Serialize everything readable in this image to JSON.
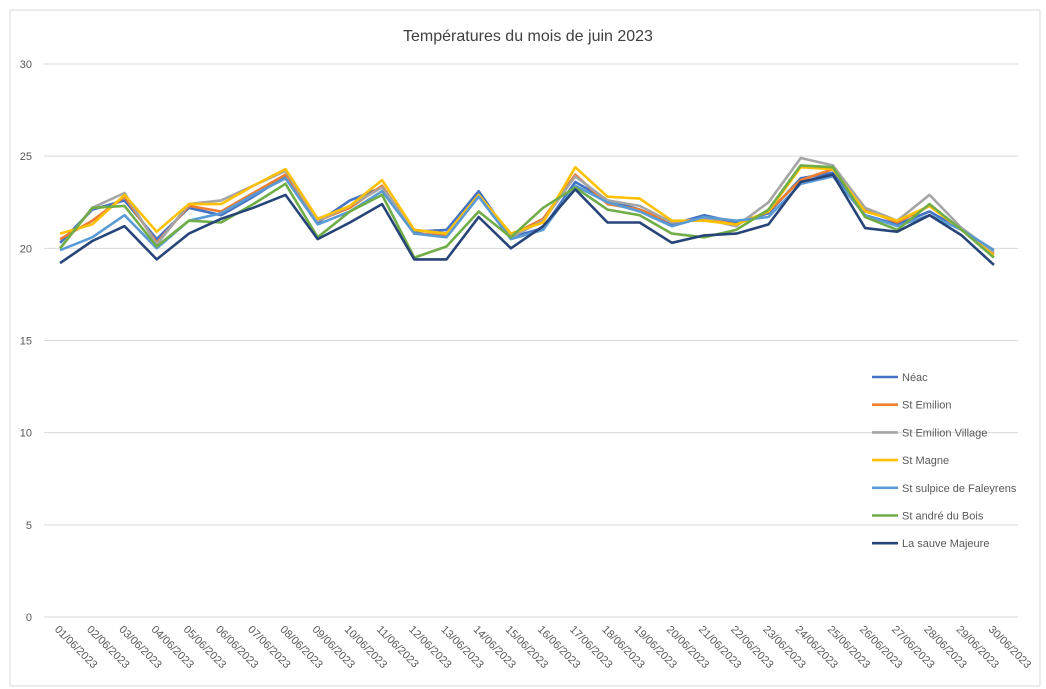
{
  "chart_data": {
    "type": "line",
    "title": "Températures du mois de juin 2023",
    "categories": [
      "01/06/2023",
      "02/06/2023",
      "03/06/2023",
      "04/06/2023",
      "05/06/2023",
      "06/06/2023",
      "07/06/2023",
      "08/06/2023",
      "09/06/2023",
      "10/06/2023",
      "11/06/2023",
      "12/06/2023",
      "13/06/2023",
      "14/06/2023",
      "15/06/2023",
      "16/06/2023",
      "17/06/2023",
      "18/06/2023",
      "19/06/2023",
      "20/06/2023",
      "21/06/2023",
      "22/06/2023",
      "23/06/2023",
      "24/06/2023",
      "25/06/2023",
      "26/06/2023",
      "27/06/2023",
      "28/06/2023",
      "29/06/2023",
      "30/06/2023"
    ],
    "series": [
      {
        "name": "Néac",
        "color": "#4472c4",
        "values": [
          20.3,
          22.1,
          22.6,
          20.5,
          22.2,
          21.8,
          22.8,
          23.9,
          21.4,
          22.6,
          23.3,
          20.9,
          21.0,
          23.1,
          20.6,
          21.1,
          23.6,
          22.6,
          22.1,
          21.3,
          21.8,
          21.4,
          21.9,
          23.8,
          24.1,
          21.8,
          21.3,
          22.0,
          21.0,
          19.9
        ]
      },
      {
        "name": "St Emilion",
        "color": "#ed7d31",
        "values": [
          20.5,
          21.5,
          22.8,
          20.3,
          22.3,
          22.0,
          23.0,
          24.0,
          21.5,
          22.2,
          23.4,
          20.8,
          20.7,
          22.9,
          20.7,
          21.6,
          24.0,
          22.4,
          22.1,
          21.4,
          21.6,
          21.3,
          22.0,
          23.7,
          24.3,
          22.1,
          21.4,
          22.3,
          21.0,
          19.7
        ]
      },
      {
        "name": "St Emilion Village",
        "color": "#a5a5a5",
        "values": [
          20.0,
          22.2,
          23.0,
          20.2,
          22.4,
          22.6,
          23.4,
          24.2,
          21.5,
          22.3,
          23.3,
          21.0,
          20.8,
          22.9,
          20.6,
          21.5,
          23.9,
          22.6,
          22.3,
          21.4,
          21.6,
          21.2,
          22.5,
          24.9,
          24.5,
          22.2,
          21.5,
          22.9,
          21.1,
          19.8
        ]
      },
      {
        "name": "St Magne",
        "color": "#ffc000",
        "values": [
          20.8,
          21.3,
          22.9,
          20.9,
          22.4,
          22.4,
          23.4,
          24.3,
          21.6,
          22.3,
          23.7,
          21.0,
          20.8,
          22.9,
          20.8,
          21.4,
          24.4,
          22.8,
          22.7,
          21.5,
          21.5,
          21.3,
          22.0,
          24.4,
          24.3,
          22.0,
          21.5,
          22.3,
          21.0,
          19.6
        ]
      },
      {
        "name": "St sulpice de Faleyrens",
        "color": "#5b9bd5",
        "values": [
          19.9,
          20.6,
          21.8,
          20.0,
          21.5,
          21.9,
          22.9,
          23.8,
          21.3,
          22.0,
          23.1,
          20.8,
          20.6,
          22.8,
          20.5,
          21.0,
          23.4,
          22.5,
          22.0,
          21.2,
          21.7,
          21.5,
          21.7,
          23.5,
          23.9,
          21.8,
          21.2,
          21.8,
          21.0,
          19.9
        ]
      },
      {
        "name": "St andré du Bois",
        "color": "#70ad47",
        "values": [
          20.0,
          22.2,
          22.3,
          20.1,
          21.5,
          21.4,
          22.4,
          23.5,
          20.6,
          22.0,
          22.9,
          19.5,
          20.1,
          22.0,
          20.6,
          22.2,
          23.3,
          22.1,
          21.8,
          20.8,
          20.6,
          21.0,
          22.1,
          24.5,
          24.4,
          21.7,
          21.0,
          22.4,
          21.0,
          19.5
        ]
      },
      {
        "name": "La sauve Majeure",
        "color": "#264478",
        "values": [
          19.2,
          20.4,
          21.2,
          19.4,
          20.8,
          21.6,
          22.2,
          22.9,
          20.5,
          21.4,
          22.4,
          19.4,
          19.4,
          21.7,
          20.0,
          21.2,
          23.2,
          21.4,
          21.4,
          20.3,
          20.7,
          20.8,
          21.3,
          23.6,
          24.0,
          21.1,
          20.9,
          21.8,
          20.7,
          19.1
        ]
      }
    ],
    "ylim": [
      0,
      30
    ],
    "yticks": [
      0,
      5,
      10,
      15,
      20,
      25,
      30
    ],
    "grid": true,
    "legend": "right"
  }
}
